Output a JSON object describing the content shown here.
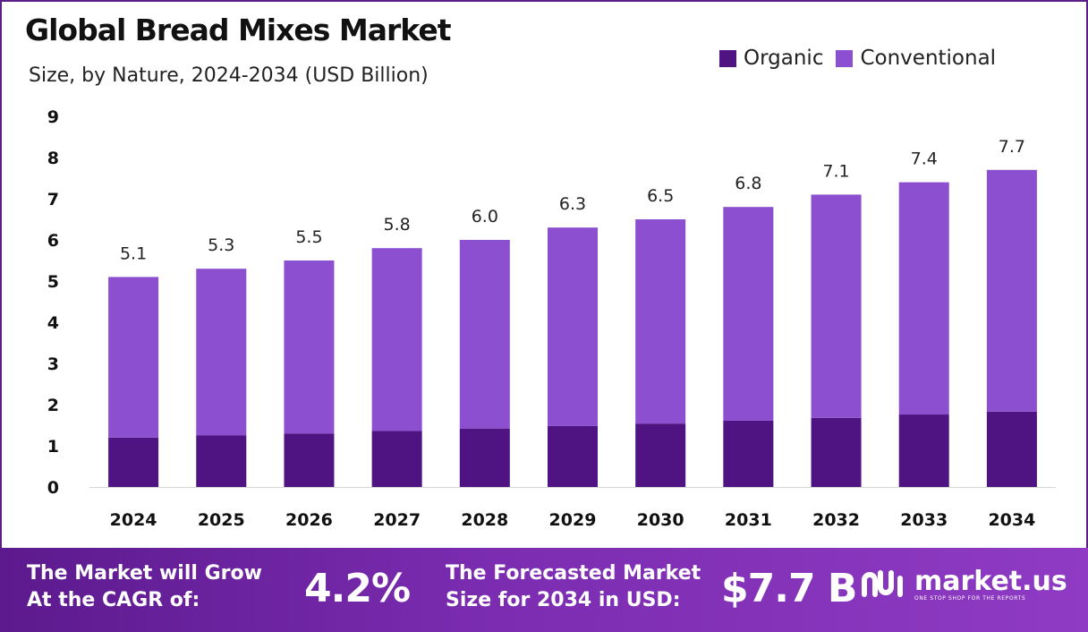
{
  "header": {
    "title": "Global Bread Mixes Market",
    "subtitle": "Size, by Nature, 2024-2034 (USD Billion)"
  },
  "legend": [
    {
      "label": "Organic",
      "color": "#4f1482"
    },
    {
      "label": "Conventional",
      "color": "#8b4fd0"
    }
  ],
  "chart_data": {
    "type": "bar",
    "stacked": true,
    "title": "Global Bread Mixes Market",
    "subtitle": "Size, by Nature, 2024-2034 (USD Billion)",
    "categories": [
      "2024",
      "2025",
      "2026",
      "2027",
      "2028",
      "2029",
      "2030",
      "2031",
      "2032",
      "2033",
      "2034"
    ],
    "series": [
      {
        "name": "Organic",
        "color": "#4f1482",
        "values": [
          1.2,
          1.25,
          1.3,
          1.36,
          1.42,
          1.48,
          1.54,
          1.61,
          1.68,
          1.76,
          1.83
        ]
      },
      {
        "name": "Conventional",
        "color": "#8b4fd0",
        "values": [
          3.9,
          4.05,
          4.2,
          4.44,
          4.58,
          4.82,
          4.96,
          5.19,
          5.42,
          5.64,
          5.87
        ]
      }
    ],
    "totals": [
      "5.1",
      "5.3",
      "5.5",
      "5.8",
      "6.0",
      "6.3",
      "6.5",
      "6.8",
      "7.1",
      "7.4",
      "7.7"
    ],
    "ylim": [
      0,
      9
    ],
    "yticks": [
      "0",
      "1",
      "2",
      "3",
      "4",
      "5",
      "6",
      "7",
      "8",
      "9"
    ],
    "xlabel": "",
    "ylabel": "",
    "grid": false,
    "legend_position": "top-right"
  },
  "footer": {
    "cagr_label_line1": "The Market will Grow",
    "cagr_label_line2": "At the CAGR of:",
    "cagr_value": "4.2%",
    "forecast_label_line1": "The Forecasted Market",
    "forecast_label_line2": "Size for 2034 in USD:",
    "forecast_value": "$7.7 B",
    "brand_name": "market.us",
    "brand_tagline": "ONE STOP SHOP FOR THE REPORTS"
  }
}
